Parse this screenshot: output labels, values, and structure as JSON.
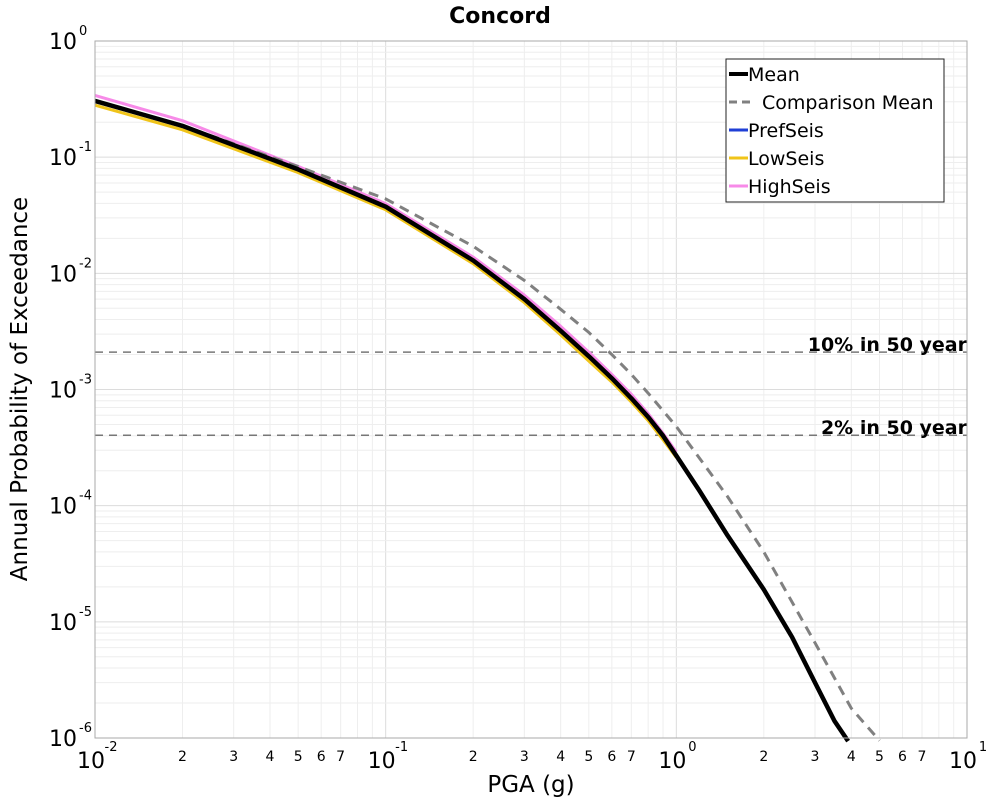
{
  "chart_data": {
    "type": "line",
    "title": "Concord",
    "xlabel": "PGA (g)",
    "ylabel": "Annual Probability of Exceedance",
    "x_scale": "log",
    "y_scale": "log",
    "xlim": [
      0.01,
      10
    ],
    "ylim": [
      1e-06,
      1
    ],
    "grid": true,
    "legend_position": "top-right",
    "x_major_ticks": [
      {
        "value": 0.01,
        "base": "10",
        "exp": "-2"
      },
      {
        "value": 0.1,
        "base": "10",
        "exp": "-1"
      },
      {
        "value": 1,
        "base": "10",
        "exp": "0"
      },
      {
        "value": 10,
        "base": "10",
        "exp": "1"
      }
    ],
    "x_minor_labels": [
      "2",
      "3",
      "4",
      "5",
      "6",
      "7"
    ],
    "y_major_ticks": [
      {
        "value": 1,
        "base": "10",
        "exp": "0"
      },
      {
        "value": 0.1,
        "base": "10",
        "exp": "-1"
      },
      {
        "value": 0.01,
        "base": "10",
        "exp": "-2"
      },
      {
        "value": 0.001,
        "base": "10",
        "exp": "-3"
      },
      {
        "value": 0.0001,
        "base": "10",
        "exp": "-4"
      },
      {
        "value": 1e-05,
        "base": "10",
        "exp": "-5"
      },
      {
        "value": 1e-06,
        "base": "10",
        "exp": "-6"
      }
    ],
    "reference_lines": [
      {
        "label": "10% in 50 year",
        "y": 0.0021
      },
      {
        "label": "2% in 50 year",
        "y": 0.000404
      }
    ],
    "series": [
      {
        "name": "LowSeis",
        "color": "#f0c419",
        "style": "solid",
        "x": [
          0.01,
          0.02,
          0.05,
          0.1,
          0.2,
          0.3,
          0.4,
          0.5,
          0.6,
          0.7,
          0.8,
          0.9,
          1.0
        ],
        "y": [
          0.28,
          0.172,
          0.0737,
          0.0352,
          0.0121,
          0.0056,
          0.00295,
          0.00176,
          0.00116,
          0.00078,
          0.00054,
          0.00037,
          0.00026
        ]
      },
      {
        "name": "HighSeis",
        "color": "#f78ae8",
        "style": "solid",
        "x": [
          0.01,
          0.02,
          0.05,
          0.1,
          0.2,
          0.3,
          0.4,
          0.5,
          0.6,
          0.7,
          0.8,
          0.9,
          1.0
        ],
        "y": [
          0.34,
          0.206,
          0.0833,
          0.0398,
          0.0138,
          0.0065,
          0.0035,
          0.0021,
          0.00135,
          0.00091,
          0.00062,
          0.00042,
          0.00029
        ]
      },
      {
        "name": "PrefSeis",
        "color": "#1f3fd6",
        "style": "solid",
        "x": [
          0.01,
          0.02,
          0.05,
          0.1,
          0.2,
          0.3,
          0.4,
          0.5,
          0.6,
          0.7,
          0.8,
          0.9,
          1.0
        ],
        "y": [
          0.305,
          0.186,
          0.0785,
          0.0375,
          0.0129,
          0.006,
          0.0032,
          0.00193,
          0.00125,
          0.00084,
          0.00058,
          0.0004,
          0.00027
        ]
      },
      {
        "name": "Comparison Mean",
        "color": "#808080",
        "style": "dashed",
        "x": [
          0.01,
          0.02,
          0.05,
          0.1,
          0.2,
          0.3,
          0.4,
          0.5,
          0.6,
          0.7,
          0.8,
          1.0,
          1.5,
          2.0,
          3.0,
          4.0,
          5.0
        ],
        "y": [
          0.305,
          0.187,
          0.083,
          0.0437,
          0.0171,
          0.0087,
          0.0049,
          0.0031,
          0.002,
          0.00135,
          0.00093,
          0.00048,
          0.00012,
          4e-05,
          6.6e-06,
          1.8e-06,
          9.5e-07
        ]
      },
      {
        "name": "Mean",
        "color": "#000000",
        "style": "solid",
        "x": [
          0.01,
          0.02,
          0.05,
          0.1,
          0.2,
          0.3,
          0.4,
          0.5,
          0.6,
          0.7,
          0.8,
          0.9,
          1.0,
          1.2,
          1.5,
          2.0,
          2.5,
          3.0,
          3.5,
          3.9
        ],
        "y": [
          0.305,
          0.186,
          0.0785,
          0.0375,
          0.0129,
          0.006,
          0.0032,
          0.00193,
          0.00125,
          0.00084,
          0.00058,
          0.0004,
          0.00027,
          0.000135,
          5.55e-05,
          1.9e-05,
          7.4e-06,
          3e-06,
          1.4e-06,
          9.4e-07
        ]
      }
    ],
    "legend": [
      {
        "name": "Mean",
        "color": "#000000",
        "style": "solid"
      },
      {
        "name": "Comparison Mean",
        "color": "#808080",
        "style": "dashed"
      },
      {
        "name": "PrefSeis",
        "color": "#1f3fd6",
        "style": "solid"
      },
      {
        "name": "LowSeis",
        "color": "#f0c419",
        "style": "solid"
      },
      {
        "name": "HighSeis",
        "color": "#f78ae8",
        "style": "solid"
      }
    ]
  }
}
